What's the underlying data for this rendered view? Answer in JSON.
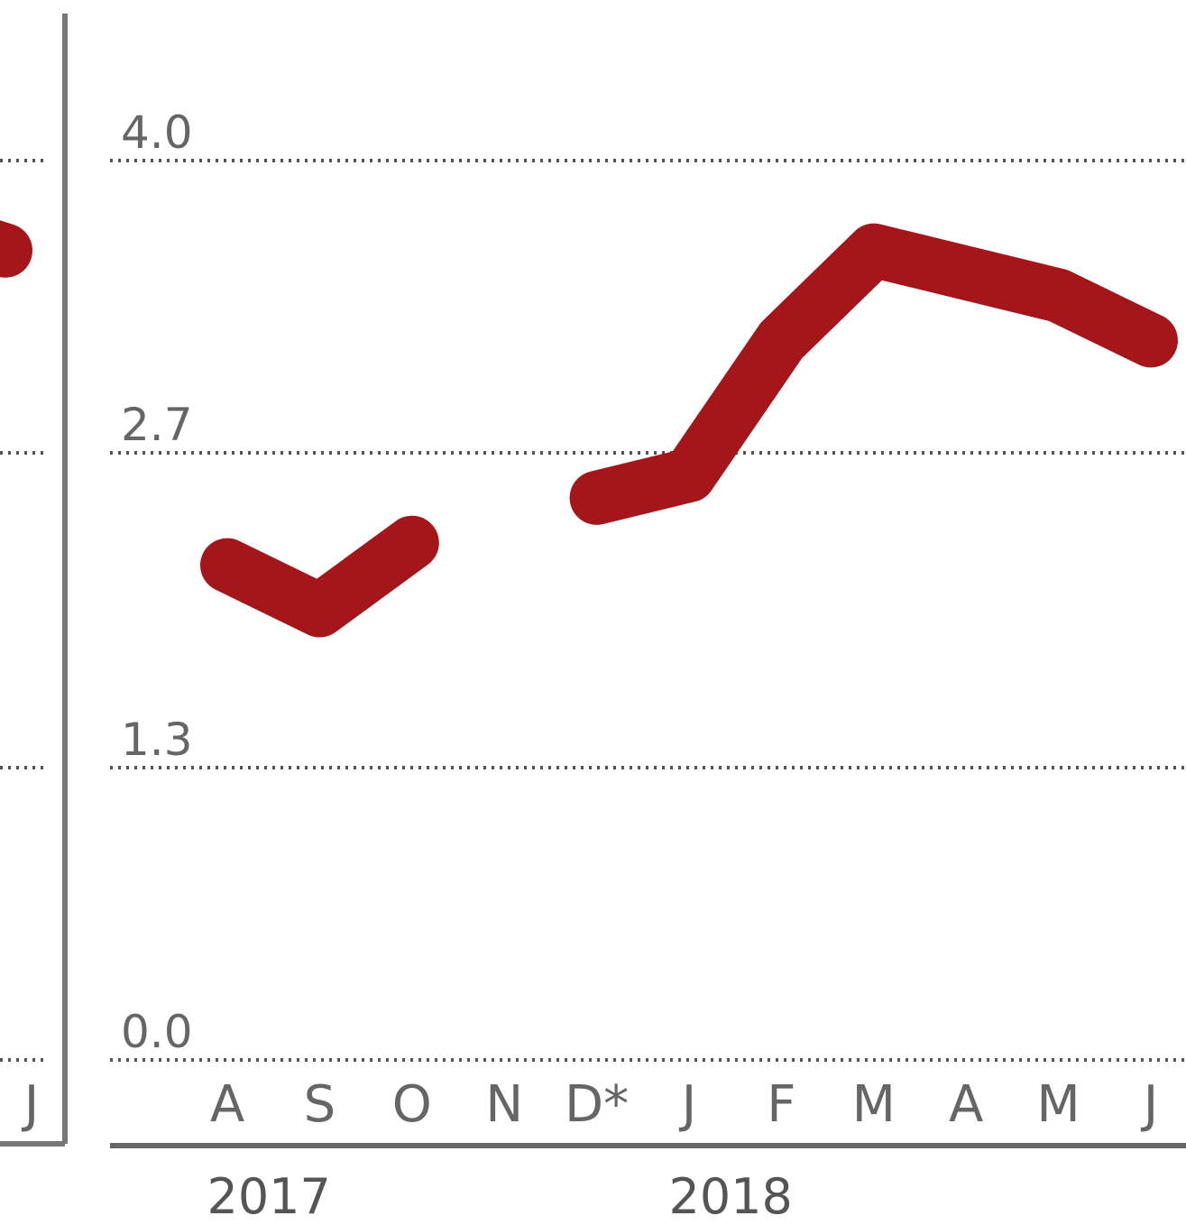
{
  "colors": {
    "series": "#a4161a",
    "axis": "#666666",
    "grid": "#555555",
    "text": "#666666"
  },
  "chart_data": [
    {
      "type": "line",
      "title": "",
      "xlabel": "",
      "ylabel": "",
      "ylim": [
        0,
        4.0
      ],
      "grid": true,
      "yticks": [
        "4.0",
        "2.7",
        "1.3",
        "0.0"
      ],
      "ytick_values": [
        4.0,
        2.7,
        1.3,
        0.0
      ],
      "categories": [
        "A",
        "S",
        "O",
        "N",
        "D*",
        "J",
        "F",
        "M",
        "A",
        "M",
        "J"
      ],
      "years": [
        {
          "label": "2017",
          "index": 0.5
        },
        {
          "label": "2018",
          "index": 5.5
        }
      ],
      "series": [
        {
          "values": [
            2.2,
            2.0,
            2.3,
            null,
            2.5,
            2.6,
            3.2,
            3.6,
            3.5,
            3.4,
            3.2
          ]
        }
      ]
    },
    {
      "type": "line",
      "title": "",
      "partial": true,
      "categories": [
        "J"
      ],
      "series": [
        {
          "values": [
            3.6
          ]
        }
      ]
    }
  ]
}
